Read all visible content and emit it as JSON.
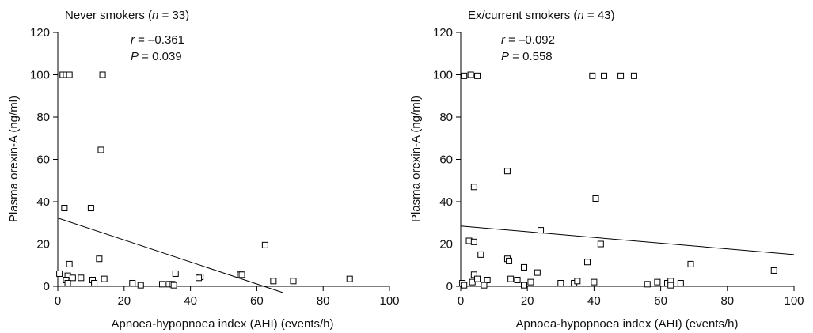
{
  "chart_data": [
    {
      "type": "scatter",
      "title": "Never smokers (n = 33)",
      "title_parts": [
        "Never smokers (",
        "n",
        " = 33)"
      ],
      "xlabel": "Apnoea-hypopnoea index (AHI) (events/h)",
      "ylabel": "Plasma orexin-A (ng/ml)",
      "xlim": [
        0,
        100
      ],
      "ylim": [
        0,
        120
      ],
      "xticks": [
        "0",
        "20",
        "40",
        "60",
        "80",
        "100"
      ],
      "yticks": [
        "0",
        "20",
        "40",
        "60",
        "80",
        "100",
        "120"
      ],
      "r_label": "r",
      "r_value": " = –0.361",
      "p_label": "P",
      "p_value": " = 0.039",
      "regression": {
        "intercept": 32.3,
        "slope": -0.52
      },
      "points": [
        [
          1.5,
          100
        ],
        [
          2.5,
          100
        ],
        [
          3.5,
          100
        ],
        [
          13.5,
          100
        ],
        [
          13,
          64.5
        ],
        [
          2,
          37
        ],
        [
          10,
          37
        ],
        [
          62.5,
          19.5
        ],
        [
          12.5,
          13
        ],
        [
          3.5,
          10.5
        ],
        [
          0.5,
          6
        ],
        [
          3,
          5
        ],
        [
          35.5,
          6
        ],
        [
          55,
          5.5
        ],
        [
          4.5,
          4
        ],
        [
          7,
          4
        ],
        [
          14,
          3.5
        ],
        [
          2.5,
          3
        ],
        [
          10.5,
          3
        ],
        [
          43,
          4.5
        ],
        [
          42.5,
          4
        ],
        [
          55.5,
          5.5
        ],
        [
          65,
          2.5
        ],
        [
          71,
          2.5
        ],
        [
          88,
          3.5
        ],
        [
          3,
          1.5
        ],
        [
          11,
          1.5
        ],
        [
          22.5,
          1.5
        ],
        [
          25,
          0.5
        ],
        [
          31.5,
          1
        ],
        [
          33.5,
          1
        ],
        [
          34.5,
          1
        ],
        [
          35,
          0.5
        ]
      ]
    },
    {
      "type": "scatter",
      "title": "Ex/current smokers (n = 43)",
      "title_parts": [
        "Ex/current smokers (",
        "n",
        " = 43)"
      ],
      "xlabel": "Apnoea-hypopnoea index (AHI) (events/h)",
      "ylabel": "Plasma orexin-A (ng/ml)",
      "xlim": [
        0,
        100
      ],
      "ylim": [
        0,
        120
      ],
      "xticks": [
        "0",
        "20",
        "40",
        "60",
        "80",
        "100"
      ],
      "yticks": [
        "0",
        "20",
        "40",
        "60",
        "80",
        "100",
        "120"
      ],
      "r_label": "r",
      "r_value": " = –0.092",
      "p_label": "P",
      "p_value": " = 0.558",
      "regression": {
        "intercept": 28.5,
        "slope": -0.135
      },
      "points": [
        [
          1,
          99.5
        ],
        [
          3,
          100
        ],
        [
          5,
          99.5
        ],
        [
          39.5,
          99.5
        ],
        [
          43,
          99.5
        ],
        [
          48,
          99.5
        ],
        [
          52,
          99.5
        ],
        [
          14,
          54.5
        ],
        [
          4,
          47
        ],
        [
          40.5,
          41.5
        ],
        [
          2.5,
          21.5
        ],
        [
          4,
          21
        ],
        [
          24,
          26.5
        ],
        [
          42,
          20
        ],
        [
          6,
          15
        ],
        [
          14,
          13
        ],
        [
          14.5,
          12
        ],
        [
          38,
          11.5
        ],
        [
          69,
          10.5
        ],
        [
          19,
          9
        ],
        [
          94,
          7.5
        ],
        [
          23,
          6.5
        ],
        [
          4,
          5.5
        ],
        [
          0.5,
          1.5
        ],
        [
          3.5,
          2
        ],
        [
          5,
          3.5
        ],
        [
          8,
          3
        ],
        [
          15,
          3.5
        ],
        [
          17,
          3
        ],
        [
          21,
          2
        ],
        [
          30,
          1.5
        ],
        [
          34,
          1.5
        ],
        [
          35,
          2.5
        ],
        [
          40,
          2
        ],
        [
          56,
          1
        ],
        [
          59,
          2
        ],
        [
          62,
          1.5
        ],
        [
          63,
          2.5
        ],
        [
          66,
          1.5
        ],
        [
          1,
          0.5
        ],
        [
          7,
          0.5
        ],
        [
          19,
          0.5
        ],
        [
          63,
          0.5
        ]
      ]
    }
  ]
}
